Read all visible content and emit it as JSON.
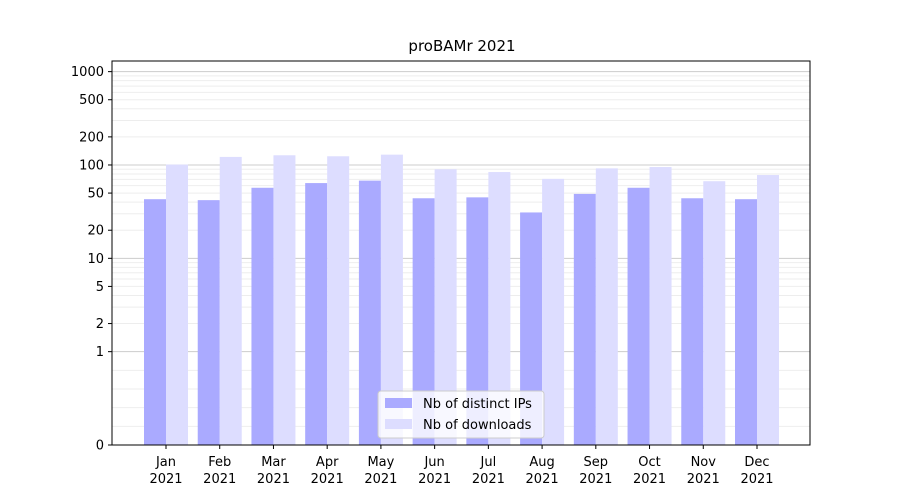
{
  "chart_data": {
    "type": "bar",
    "title": "proBAMr 2021",
    "xlabel": "",
    "ylabel": "",
    "categories": [
      "Jan\n2021",
      "Feb\n2021",
      "Mar\n2021",
      "Apr\n2021",
      "May\n2021",
      "Jun\n2021",
      "Jul\n2021",
      "Aug\n2021",
      "Sep\n2021",
      "Oct\n2021",
      "Nov\n2021",
      "Dec\n2021"
    ],
    "series": [
      {
        "name": "Nb of distinct IPs",
        "color": "#aaaaff",
        "values": [
          43,
          42,
          57,
          64,
          68,
          44,
          45,
          31,
          49,
          57,
          44,
          43
        ]
      },
      {
        "name": "Nb of downloads",
        "color": "#ddddff",
        "values": [
          101,
          122,
          127,
          124,
          129,
          90,
          84,
          71,
          92,
          95,
          67,
          78
        ]
      }
    ],
    "y_scale": "symlog",
    "ylim": [
      0,
      1300
    ],
    "y_ticks": [
      0,
      1,
      2,
      5,
      10,
      20,
      50,
      100,
      200,
      500,
      1000
    ],
    "y_tick_labels": [
      "0",
      "1",
      "2",
      "5",
      "10",
      "20",
      "50",
      "100",
      "200",
      "500",
      "1000"
    ],
    "grid": "y",
    "legend_position": "lower center"
  }
}
